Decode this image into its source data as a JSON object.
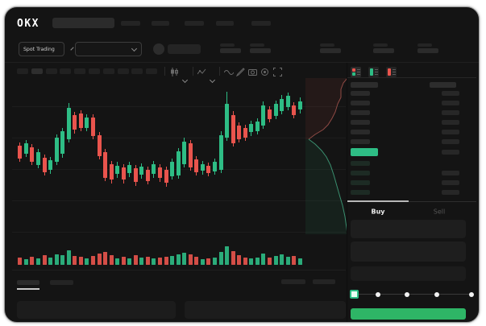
{
  "header": {
    "logo": "OKX"
  },
  "trading_bar": {
    "market_selector_label": "Spot Trading"
  },
  "order_panel": {
    "buy_tab_label": "Buy",
    "sell_tab_label": "Sell"
  },
  "colors": {
    "up_green": "#2ebd85",
    "down_red": "#e9544d",
    "last_price_bg": "#2ebd85",
    "buy_button_bg": "#2eb566",
    "window_bg": "#141414"
  },
  "icons": [
    "search-input-skeleton",
    "chevron-down-icon",
    "candles-style-icon",
    "indicators-icon",
    "line-tool-icon",
    "draw-icon",
    "camera-icon",
    "settings-icon",
    "fullscreen-icon",
    "orderbook-all-icon",
    "orderbook-bids-icon",
    "orderbook-asks-icon",
    "slider-handle"
  ],
  "chart_data": {
    "type": "candlestick",
    "x_axis_labels_visible": false,
    "y_axis_labels_visible": false,
    "grid": "horizontal-faint",
    "candles": [
      [
        80,
        96,
        76,
        100,
        "r"
      ],
      [
        77,
        90,
        73,
        94,
        "g"
      ],
      [
        82,
        100,
        78,
        104,
        "r"
      ],
      [
        88,
        104,
        84,
        108,
        "g"
      ],
      [
        95,
        113,
        91,
        117,
        "r"
      ],
      [
        98,
        110,
        94,
        115,
        "g"
      ],
      [
        70,
        100,
        66,
        104,
        "g"
      ],
      [
        62,
        90,
        58,
        95,
        "g"
      ],
      [
        33,
        72,
        27,
        76,
        "g"
      ],
      [
        42,
        60,
        38,
        65,
        "r"
      ],
      [
        40,
        58,
        36,
        62,
        "r"
      ],
      [
        45,
        58,
        41,
        62,
        "g"
      ],
      [
        45,
        68,
        41,
        72,
        "r"
      ],
      [
        67,
        93,
        63,
        97,
        "r"
      ],
      [
        88,
        120,
        84,
        124,
        "r"
      ],
      [
        103,
        122,
        99,
        127,
        "r"
      ],
      [
        105,
        115,
        100,
        120,
        "g"
      ],
      [
        107,
        122,
        103,
        127,
        "r"
      ],
      [
        104,
        114,
        100,
        119,
        "g"
      ],
      [
        108,
        125,
        104,
        130,
        "r"
      ],
      [
        106,
        116,
        102,
        121,
        "g"
      ],
      [
        110,
        124,
        106,
        128,
        "r"
      ],
      [
        103,
        115,
        99,
        120,
        "g"
      ],
      [
        107,
        120,
        103,
        125,
        "r"
      ],
      [
        110,
        126,
        106,
        131,
        "r"
      ],
      [
        100,
        118,
        96,
        122,
        "g"
      ],
      [
        87,
        117,
        83,
        121,
        "g"
      ],
      [
        75,
        103,
        70,
        107,
        "g"
      ],
      [
        77,
        107,
        73,
        111,
        "r"
      ],
      [
        97,
        113,
        93,
        117,
        "r"
      ],
      [
        103,
        111,
        99,
        116,
        "g"
      ],
      [
        105,
        114,
        101,
        118,
        "r"
      ],
      [
        100,
        112,
        96,
        116,
        "g"
      ],
      [
        67,
        110,
        62,
        114,
        "g"
      ],
      [
        28,
        70,
        13,
        74,
        "g"
      ],
      [
        42,
        77,
        37,
        81,
        "r"
      ],
      [
        55,
        72,
        51,
        76,
        "r"
      ],
      [
        58,
        70,
        54,
        74,
        "r"
      ],
      [
        53,
        63,
        49,
        68,
        "g"
      ],
      [
        50,
        62,
        46,
        66,
        "g"
      ],
      [
        30,
        55,
        25,
        59,
        "g"
      ],
      [
        35,
        47,
        31,
        51,
        "r"
      ],
      [
        28,
        43,
        24,
        47,
        "g"
      ],
      [
        22,
        37,
        17,
        41,
        "g"
      ],
      [
        18,
        32,
        14,
        36,
        "g"
      ],
      [
        30,
        42,
        26,
        46,
        "r"
      ],
      [
        25,
        35,
        20,
        40,
        "g"
      ]
    ],
    "volume": [
      9,
      7,
      10,
      8,
      12,
      9,
      13,
      12,
      18,
      11,
      10,
      8,
      11,
      14,
      16,
      12,
      8,
      10,
      8,
      12,
      9,
      10,
      8,
      9,
      10,
      11,
      13,
      15,
      13,
      10,
      7,
      8,
      9,
      16,
      23,
      17,
      12,
      9,
      8,
      9,
      14,
      9,
      11,
      13,
      10,
      11,
      8
    ]
  }
}
